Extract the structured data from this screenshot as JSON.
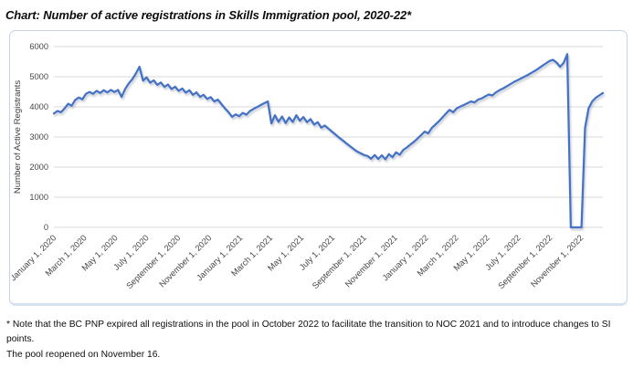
{
  "page": {
    "title": "Chart: Number of active registrations in Skills Immigration pool, 2020-22*",
    "footnote_line1": "* Note that the BC PNP expired all registrations in the pool in October 2022 to facilitate the transition to NOC 2021 and to introduce changes to SI points.",
    "footnote_line2": "The pool reopened on November 16."
  },
  "colors": {
    "line": "#4472C4",
    "gridline": "#D9D9D9",
    "axis_text": "#474747",
    "card_border": "#C6D4EB"
  },
  "chart_data": {
    "type": "line",
    "title": "Number of active registrations in Skills Immigration pool, 2020-22",
    "xlabel": "",
    "ylabel": "Number of Active Registrants",
    "ylim": [
      0,
      6000
    ],
    "y_ticks": [
      0,
      1000,
      2000,
      3000,
      4000,
      5000,
      6000
    ],
    "grid": "horizontal",
    "legend_position": "none",
    "series_start_date": "2020-01-01",
    "interval": "weekly",
    "x_tick_labels": [
      "January 1, 2020",
      "March 1, 2020",
      "May 1, 2020",
      "July 1, 2020",
      "September 1, 2020",
      "November 1, 2020",
      "January 1, 2021",
      "March 1, 2021",
      "May 1, 2021",
      "July 1, 2021",
      "September 1, 2021",
      "November 1, 2021",
      "January 1, 2022",
      "March 1, 2022",
      "May 1, 2022",
      "July 1, 2022",
      "September 1, 2022",
      "November 1, 2022"
    ],
    "values": [
      3780,
      3860,
      3820,
      3950,
      4100,
      4040,
      4230,
      4310,
      4250,
      4430,
      4490,
      4430,
      4530,
      4460,
      4550,
      4480,
      4560,
      4490,
      4560,
      4330,
      4600,
      4780,
      4920,
      5110,
      5330,
      4870,
      4980,
      4800,
      4880,
      4730,
      4810,
      4660,
      4740,
      4590,
      4670,
      4530,
      4610,
      4470,
      4550,
      4400,
      4480,
      4330,
      4400,
      4260,
      4320,
      4180,
      4240,
      4090,
      3950,
      3820,
      3670,
      3750,
      3690,
      3800,
      3740,
      3860,
      3930,
      3990,
      4060,
      4120,
      4180,
      3450,
      3720,
      3500,
      3680,
      3460,
      3650,
      3500,
      3720,
      3540,
      3660,
      3490,
      3590,
      3410,
      3490,
      3310,
      3380,
      3280,
      3180,
      3080,
      2980,
      2890,
      2790,
      2700,
      2610,
      2520,
      2460,
      2400,
      2370,
      2280,
      2400,
      2270,
      2390,
      2260,
      2430,
      2330,
      2490,
      2410,
      2570,
      2650,
      2750,
      2840,
      2950,
      3060,
      3180,
      3120,
      3300,
      3410,
      3520,
      3650,
      3780,
      3900,
      3820,
      3950,
      4010,
      4060,
      4120,
      4180,
      4150,
      4240,
      4280,
      4350,
      4410,
      4380,
      4480,
      4550,
      4610,
      4680,
      4750,
      4820,
      4880,
      4940,
      5000,
      5060,
      5130,
      5200,
      5280,
      5360,
      5440,
      5520,
      5560,
      5470,
      5330,
      5460,
      5750,
      0,
      0,
      0,
      0,
      3300,
      3950,
      4180,
      4300,
      4380,
      4460
    ]
  }
}
